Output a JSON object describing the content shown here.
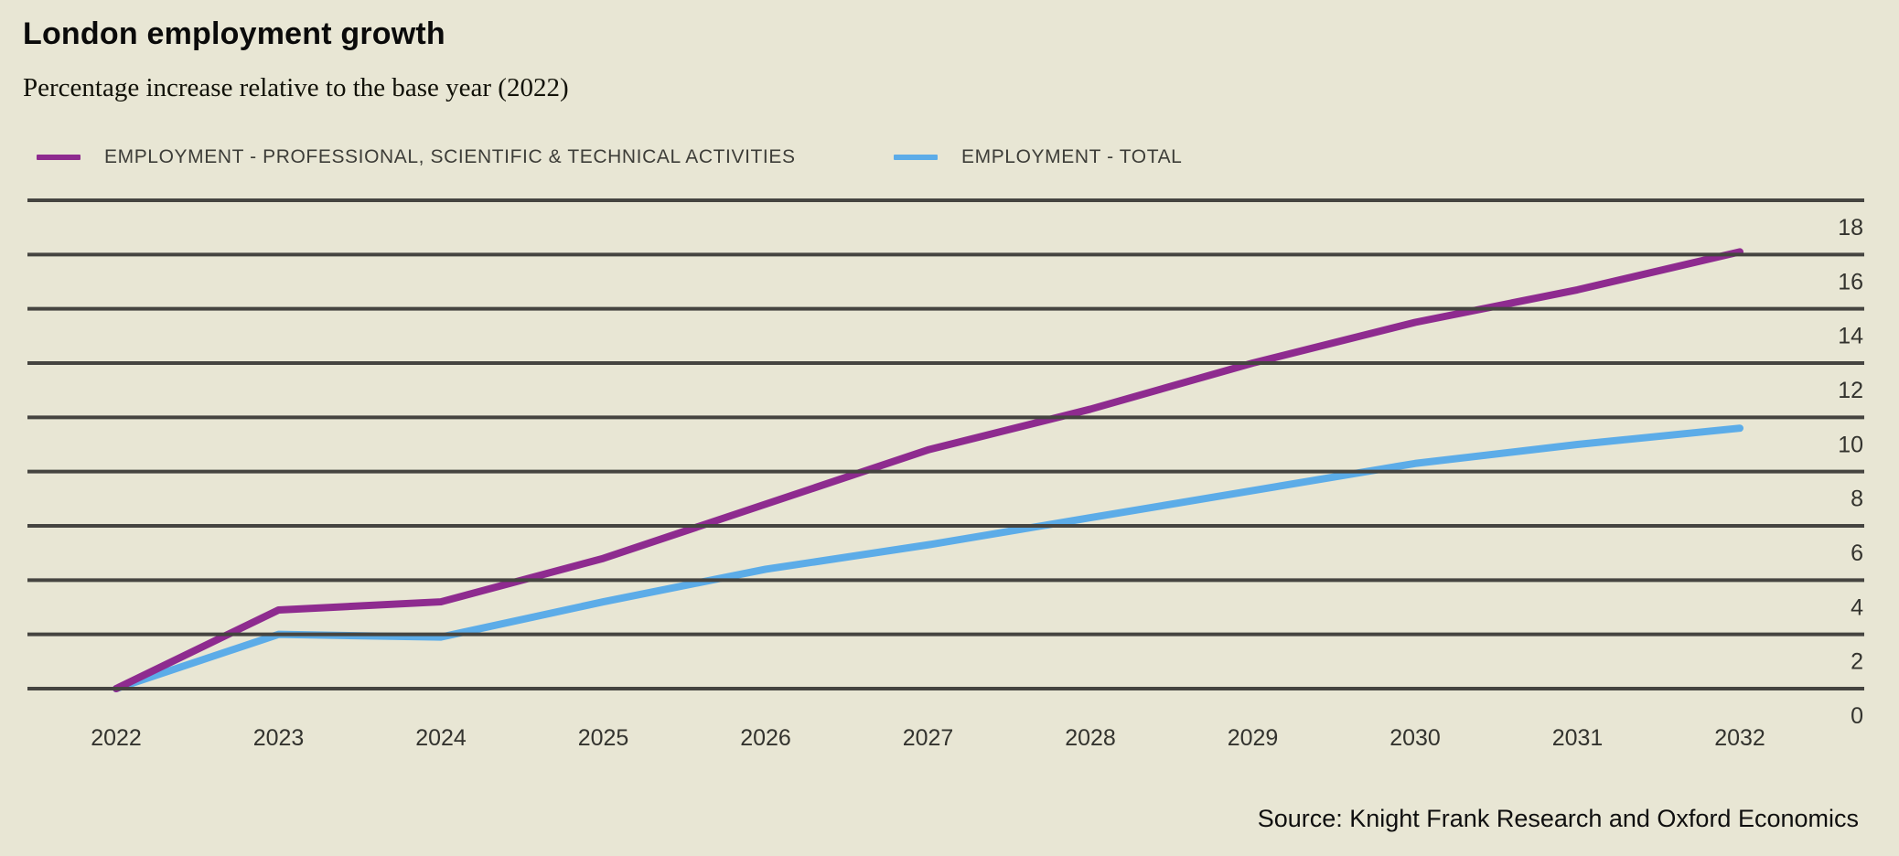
{
  "page": {
    "title": "London employment growth",
    "subtitle": "Percentage increase relative to the base year (2022)",
    "source": "Source: Knight Frank Research and Oxford Economics"
  },
  "legend": [
    {
      "label": "EMPLOYMENT - PROFESSIONAL, SCIENTIFIC & TECHNICAL ACTIVITIES",
      "color": "#8e2b8f"
    },
    {
      "label": "EMPLOYMENT - TOTAL",
      "color": "#5cace8"
    }
  ],
  "colors": {
    "background": "#e8e6d4",
    "gridline": "#454440",
    "axis_label": "#33332e",
    "series_professional": "#8e2b8f",
    "series_total": "#5cace8"
  },
  "chart_data": {
    "type": "line",
    "title": "London employment growth",
    "subtitle": "Percentage increase relative to the base year (2022)",
    "x": [
      2022,
      2023,
      2024,
      2025,
      2026,
      2027,
      2028,
      2029,
      2030,
      2031,
      2032
    ],
    "series": [
      {
        "name": "EMPLOYMENT - PROFESSIONAL, SCIENTIFIC & TECHNICAL ACTIVITIES",
        "color": "#8e2b8f",
        "values": [
          0,
          2.9,
          3.2,
          4.8,
          6.8,
          8.8,
          10.3,
          12.0,
          13.5,
          14.7,
          16.1
        ]
      },
      {
        "name": "EMPLOYMENT - TOTAL",
        "color": "#5cace8",
        "values": [
          0,
          2.0,
          1.9,
          3.2,
          4.4,
          5.3,
          6.3,
          7.3,
          8.3,
          9.0,
          9.6
        ]
      }
    ],
    "xlabel": "",
    "ylabel": "",
    "ylim": [
      0,
      18
    ],
    "yticks": [
      0,
      2,
      4,
      6,
      8,
      10,
      12,
      14,
      16,
      18
    ],
    "grid": true,
    "gridlines_on_top": true,
    "y_axis_side": "right",
    "legend_position": "top-left",
    "source": "Source: Knight Frank Research and Oxford Economics"
  }
}
